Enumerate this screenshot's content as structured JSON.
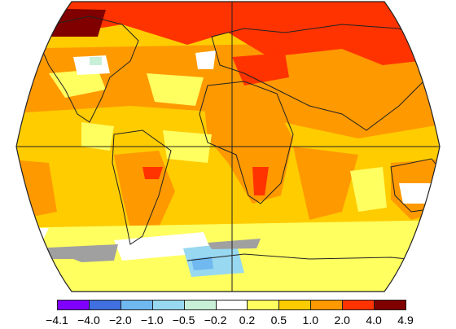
{
  "legend": {
    "ticks": [
      "−4.1",
      "−4.0",
      "−2.0",
      "−1.0",
      "−0.5",
      "−0.2",
      "0.2",
      "0.5",
      "1.0",
      "2.0",
      "4.0",
      "4.9"
    ],
    "colors": [
      "#8000ff",
      "#4070e0",
      "#70b8f0",
      "#98d8f0",
      "#c8f0d8",
      "#ffffff",
      "#ffff60",
      "#ffcc00",
      "#ff9900",
      "#ff3300",
      "#800000"
    ]
  },
  "map": {
    "projection": "Robinson",
    "missing_data_color": "#a0a0a0",
    "ocean_background_color": "#ffcc00",
    "graticule": [
      "equator",
      "prime-meridian"
    ]
  }
}
